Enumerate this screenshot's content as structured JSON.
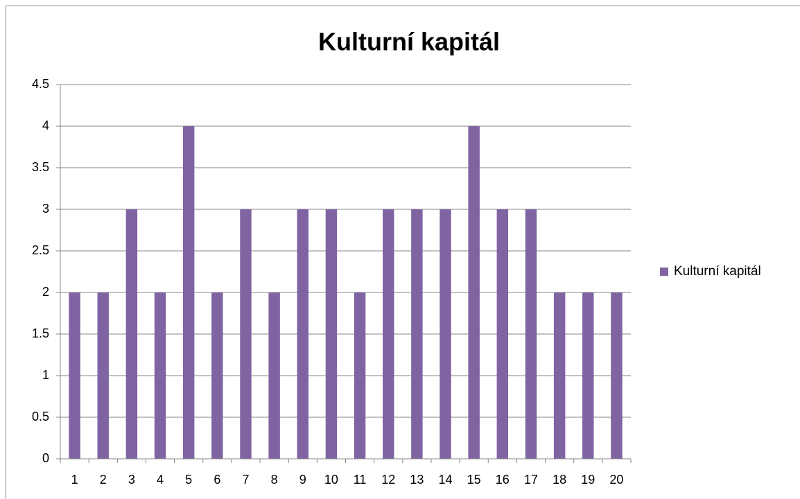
{
  "chart_data": {
    "type": "bar",
    "title": "Kulturní kapitál",
    "categories": [
      "1",
      "2",
      "3",
      "4",
      "5",
      "6",
      "7",
      "8",
      "9",
      "10",
      "11",
      "12",
      "13",
      "14",
      "15",
      "16",
      "17",
      "18",
      "19",
      "20"
    ],
    "series": [
      {
        "name": "Kulturní kapitál",
        "color": "#8064a2",
        "values": [
          2,
          2,
          3,
          2,
          4,
          2,
          3,
          2,
          3,
          3,
          2,
          3,
          3,
          3,
          4,
          3,
          3,
          2,
          2,
          2
        ]
      }
    ],
    "ylim": [
      0,
      4.5
    ],
    "yticks": [
      0,
      0.5,
      1,
      1.5,
      2,
      2.5,
      3,
      3.5,
      4,
      4.5
    ],
    "grid": true,
    "legend": "right"
  }
}
